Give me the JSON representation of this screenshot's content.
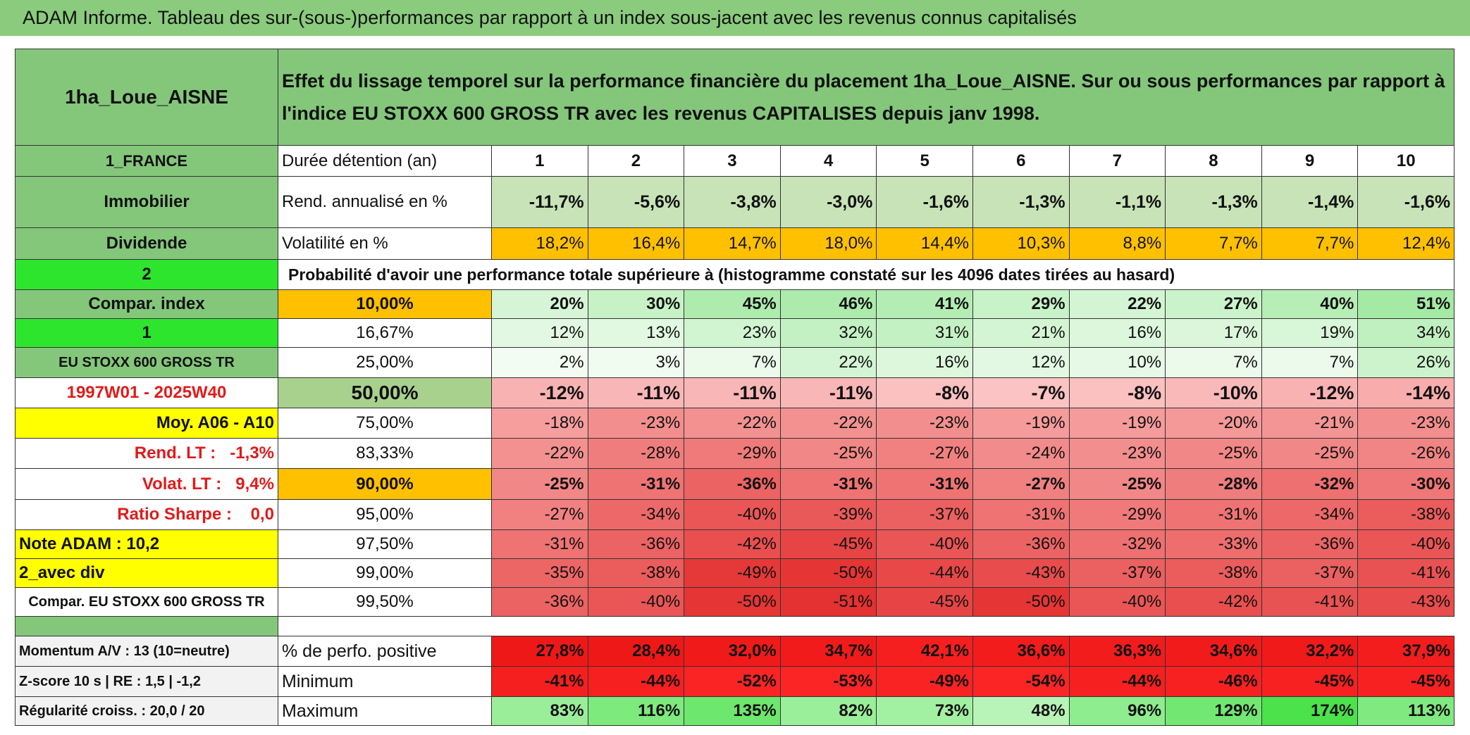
{
  "header": {
    "title": "ADAM Informe. Tableau des sur-(sous-)performances par rapport à un index sous-jacent avec les revenus connus capitalisés"
  },
  "table": {
    "header_left": "1ha_Loue_AISNE",
    "header_text": "Effet du lissage temporel sur la performance financière du placement 1ha_Loue_AISNE. Sur ou sous performances par rapport à l'indice EU STOXX 600 GROSS TR avec les revenus CAPITALISES depuis janv 1998.",
    "rows": [
      [
        "1_FRANCE",
        "Durée détention (an)",
        "1",
        "2",
        "3",
        "4",
        "5",
        "6",
        "7",
        "8",
        "9",
        "10"
      ],
      [
        "Immobilier",
        "Rend. annualisé en %",
        "-11,7%",
        "-5,6%",
        "-3,8%",
        "-3,0%",
        "-1,6%",
        "-1,3%",
        "-1,1%",
        "-1,3%",
        "-1,4%",
        "-1,6%"
      ],
      [
        "Dividende",
        "Volatilité en %",
        "18,2%",
        "16,4%",
        "14,7%",
        "18,0%",
        "14,4%",
        "10,3%",
        "8,8%",
        "7,7%",
        "7,7%",
        "12,4%"
      ],
      [
        "2",
        "Probabilité d'avoir une performance totale supérieure à (histogramme constaté sur les 4096 dates tirées au hasard)"
      ],
      [
        "Compar. index",
        "10,00%",
        "20%",
        "30%",
        "45%",
        "46%",
        "41%",
        "29%",
        "22%",
        "27%",
        "40%",
        "51%"
      ],
      [
        "1",
        "16,67%",
        "12%",
        "13%",
        "23%",
        "32%",
        "31%",
        "21%",
        "16%",
        "17%",
        "19%",
        "34%"
      ],
      [
        "EU STOXX 600 GROSS TR",
        "25,00%",
        "2%",
        "3%",
        "7%",
        "22%",
        "16%",
        "12%",
        "10%",
        "7%",
        "7%",
        "26%"
      ],
      [
        "1997W01 - 2025W40",
        "50,00%",
        "-12%",
        "-11%",
        "-11%",
        "-11%",
        "-8%",
        "-7%",
        "-8%",
        "-10%",
        "-12%",
        "-14%"
      ],
      [
        "Moy. A06 - A10",
        "75,00%",
        "-18%",
        "-23%",
        "-22%",
        "-22%",
        "-23%",
        "-19%",
        "-19%",
        "-20%",
        "-21%",
        "-23%"
      ],
      [
        "Rend. LT :   -1,3%",
        "83,33%",
        "-22%",
        "-28%",
        "-29%",
        "-25%",
        "-27%",
        "-24%",
        "-23%",
        "-25%",
        "-25%",
        "-26%"
      ],
      [
        "Volat. LT :   9,4%",
        "90,00%",
        "-25%",
        "-31%",
        "-36%",
        "-31%",
        "-31%",
        "-27%",
        "-25%",
        "-28%",
        "-32%",
        "-30%"
      ],
      [
        "Ratio Sharpe :    0,0",
        "95,00%",
        "-27%",
        "-34%",
        "-40%",
        "-39%",
        "-37%",
        "-31%",
        "-29%",
        "-31%",
        "-34%",
        "-38%"
      ],
      [
        "Note ADAM : 10,2",
        "97,50%",
        "-31%",
        "-36%",
        "-42%",
        "-45%",
        "-40%",
        "-36%",
        "-32%",
        "-33%",
        "-36%",
        "-40%"
      ],
      [
        "2_avec div",
        "99,00%",
        "-35%",
        "-38%",
        "-49%",
        "-50%",
        "-44%",
        "-43%",
        "-37%",
        "-38%",
        "-37%",
        "-41%"
      ],
      [
        "Compar. EU STOXX 600 GROSS TR",
        "99,50%",
        "-36%",
        "-40%",
        "-50%",
        "-51%",
        "-45%",
        "-50%",
        "-40%",
        "-42%",
        "-41%",
        "-43%"
      ]
    ],
    "footer_rows": [
      [
        "Momentum A/V : 13 (10=neutre)",
        "% de perfo. positive",
        "27,8%",
        "28,4%",
        "32,0%",
        "34,7%",
        "42,1%",
        "36,6%",
        "36,3%",
        "34,6%",
        "32,2%",
        "37,9%"
      ],
      [
        "Z-score 10 s | RE : 1,5 | -1,2",
        "Minimum",
        "-41%",
        "-44%",
        "-52%",
        "-53%",
        "-49%",
        "-54%",
        "-44%",
        "-46%",
        "-45%",
        "-45%"
      ],
      [
        "Régularité croiss. : 20,0 / 20",
        "Maximum",
        "83%",
        "116%",
        "135%",
        "82%",
        "73%",
        "48%",
        "96%",
        "129%",
        "174%",
        "113%"
      ]
    ]
  }
}
